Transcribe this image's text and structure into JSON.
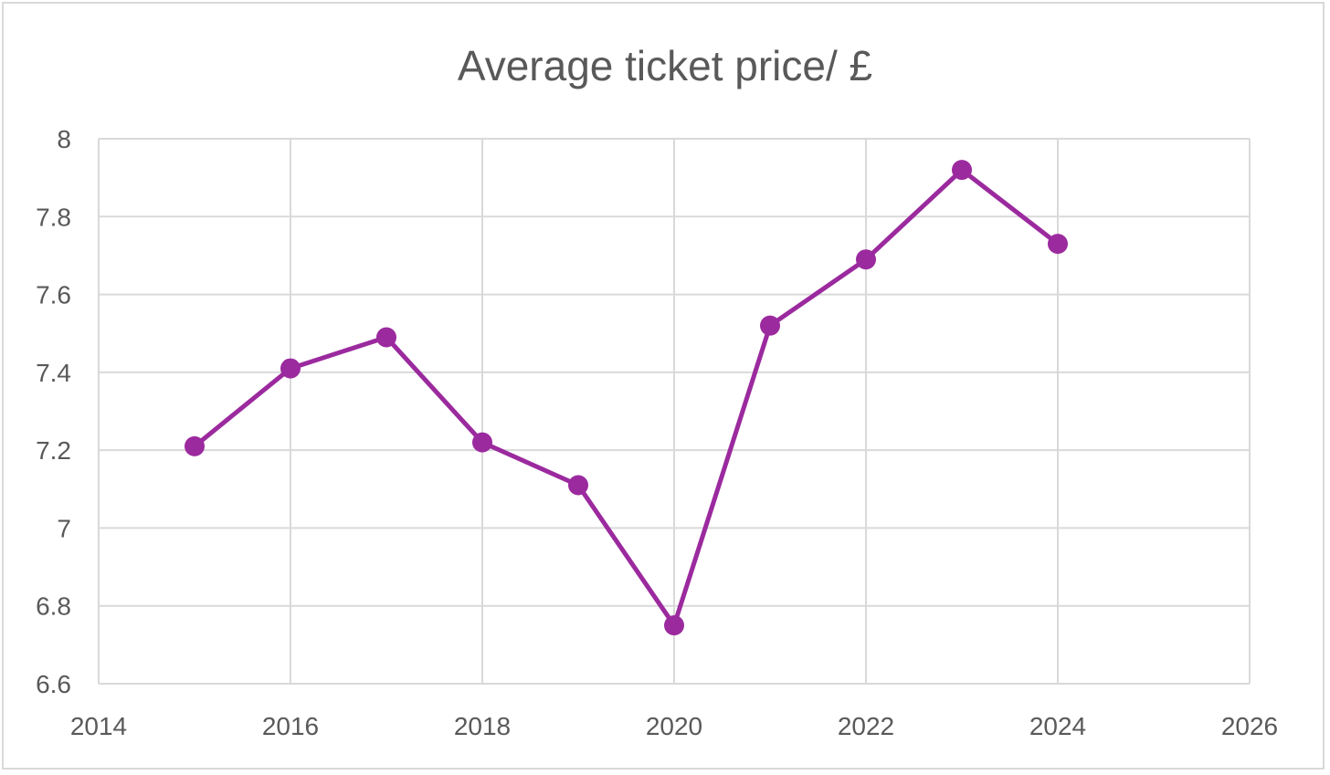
{
  "chart_data": {
    "type": "scatter",
    "title": "Average ticket price/ £",
    "xlabel": "",
    "ylabel": "",
    "xlim": [
      2014,
      2026
    ],
    "ylim": [
      6.6,
      8
    ],
    "x_ticks": [
      "2014",
      "2016",
      "2018",
      "2020",
      "2022",
      "2024",
      "2026"
    ],
    "y_ticks": [
      "6.6",
      "6.8",
      "7",
      "7.2",
      "7.4",
      "7.6",
      "7.8",
      "8"
    ],
    "grid": true,
    "legend": "none",
    "series": [
      {
        "color": "#9b2a9e",
        "marker": "circle",
        "line": "straight",
        "points": [
          {
            "x": 2015,
            "y": 7.21
          },
          {
            "x": 2016,
            "y": 7.41
          },
          {
            "x": 2017,
            "y": 7.49
          },
          {
            "x": 2018,
            "y": 7.22
          },
          {
            "x": 2019,
            "y": 7.11
          },
          {
            "x": 2020,
            "y": 6.75
          },
          {
            "x": 2021,
            "y": 7.52
          },
          {
            "x": 2022,
            "y": 7.69
          },
          {
            "x": 2023,
            "y": 7.92
          },
          {
            "x": 2024,
            "y": 7.73
          }
        ]
      }
    ]
  },
  "colors": {
    "series": "#9b2a9e",
    "grid": "#d9d9d9",
    "text": "#595959",
    "border": "#d9d9d9"
  }
}
